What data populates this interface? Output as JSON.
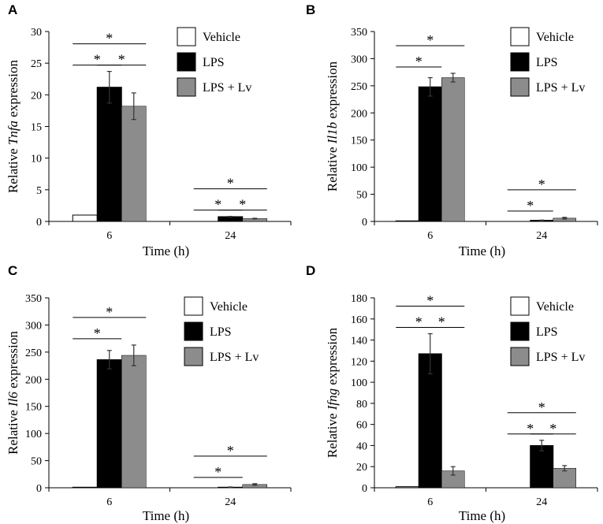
{
  "chart_data": [
    {
      "panel": "A",
      "type": "bar",
      "categories": [
        "6",
        "24"
      ],
      "xlabel": "Time (h)",
      "ylabel_pre": "Relative ",
      "ylabel_gene": "Tnfa",
      "ylabel_post": "  expression",
      "ylim": [
        0,
        30
      ],
      "yticks": [
        0,
        5,
        10,
        15,
        20,
        25,
        30
      ],
      "series": [
        {
          "name": "Vehicle",
          "values": [
            1.0,
            0.0
          ],
          "errors": [
            0,
            0
          ]
        },
        {
          "name": "LPS",
          "values": [
            21.2,
            0.75
          ],
          "errors": [
            2.5,
            0.05
          ]
        },
        {
          "name": "LPS + Lv",
          "values": [
            18.2,
            0.45
          ],
          "errors": [
            2.1,
            0.05
          ]
        }
      ],
      "significance": [
        {
          "group": 0,
          "from": 0,
          "to": 1,
          "level": 1,
          "label": "*"
        },
        {
          "group": 0,
          "from": 1,
          "to": 2,
          "level": 1,
          "label": "*"
        },
        {
          "group": 0,
          "from": 0,
          "to": 2,
          "level": 2,
          "label": "*"
        },
        {
          "group": 1,
          "from": 0,
          "to": 1,
          "level": 1,
          "label": "*"
        },
        {
          "group": 1,
          "from": 1,
          "to": 2,
          "level": 1,
          "label": "*"
        },
        {
          "group": 1,
          "from": 0,
          "to": 2,
          "level": 2,
          "label": "*"
        }
      ]
    },
    {
      "panel": "B",
      "type": "bar",
      "categories": [
        "6",
        "24"
      ],
      "xlabel": "Time (h)",
      "ylabel_pre": "Relative ",
      "ylabel_gene": "Il1b",
      "ylabel_post": " expression",
      "ylim": [
        0,
        350
      ],
      "yticks": [
        0,
        50,
        100,
        150,
        200,
        250,
        300,
        350
      ],
      "series": [
        {
          "name": "Vehicle",
          "values": [
            1.0,
            0.0
          ],
          "errors": [
            0,
            0
          ]
        },
        {
          "name": "LPS",
          "values": [
            248,
            2.0
          ],
          "errors": [
            17,
            0.5
          ]
        },
        {
          "name": "LPS + Lv",
          "values": [
            265,
            6.0
          ],
          "errors": [
            8,
            1.5
          ]
        }
      ],
      "significance": [
        {
          "group": 0,
          "from": 0,
          "to": 1,
          "level": 1,
          "label": "*"
        },
        {
          "group": 0,
          "from": 0,
          "to": 2,
          "level": 2,
          "label": "*"
        },
        {
          "group": 1,
          "from": 0,
          "to": 1,
          "level": 1,
          "label": "*"
        },
        {
          "group": 1,
          "from": 0,
          "to": 2,
          "level": 2,
          "label": "*"
        }
      ]
    },
    {
      "panel": "C",
      "type": "bar",
      "categories": [
        "6",
        "24"
      ],
      "xlabel": "Time (h)",
      "ylabel_pre": "Relative ",
      "ylabel_gene": "Il6",
      "ylabel_post": "  expression",
      "ylim": [
        0,
        350
      ],
      "yticks": [
        0,
        50,
        100,
        150,
        200,
        250,
        300,
        350
      ],
      "series": [
        {
          "name": "Vehicle",
          "values": [
            1.0,
            0.0
          ],
          "errors": [
            0,
            0
          ]
        },
        {
          "name": "LPS",
          "values": [
            236,
            1.0
          ],
          "errors": [
            17,
            0.5
          ]
        },
        {
          "name": "LPS + Lv",
          "values": [
            244,
            6.0
          ],
          "errors": [
            19,
            1.5
          ]
        }
      ],
      "significance": [
        {
          "group": 0,
          "from": 0,
          "to": 1,
          "level": 1,
          "label": "*"
        },
        {
          "group": 0,
          "from": 0,
          "to": 2,
          "level": 2,
          "label": "*"
        },
        {
          "group": 1,
          "from": 0,
          "to": 1,
          "level": 1,
          "label": "*"
        },
        {
          "group": 1,
          "from": 0,
          "to": 2,
          "level": 2,
          "label": "*"
        }
      ]
    },
    {
      "panel": "D",
      "type": "bar",
      "categories": [
        "6",
        "24"
      ],
      "xlabel": "Time (h)",
      "ylabel_pre": "Relative ",
      "ylabel_gene": "Ifng",
      "ylabel_post": " expression",
      "ylim": [
        0,
        180
      ],
      "yticks": [
        0,
        20,
        40,
        60,
        80,
        100,
        120,
        140,
        160,
        180
      ],
      "series": [
        {
          "name": "Vehicle",
          "values": [
            1.0,
            0.0
          ],
          "errors": [
            0,
            0
          ]
        },
        {
          "name": "LPS",
          "values": [
            127,
            40
          ],
          "errors": [
            19,
            5
          ]
        },
        {
          "name": "LPS + Lv",
          "values": [
            16,
            18.5
          ],
          "errors": [
            4,
            2.5
          ]
        }
      ],
      "significance": [
        {
          "group": 0,
          "from": 0,
          "to": 1,
          "level": 1,
          "label": "*"
        },
        {
          "group": 0,
          "from": 1,
          "to": 2,
          "level": 1,
          "label": "*"
        },
        {
          "group": 0,
          "from": 0,
          "to": 2,
          "level": 2,
          "label": "*"
        },
        {
          "group": 1,
          "from": 0,
          "to": 1,
          "level": 1,
          "label": "*"
        },
        {
          "group": 1,
          "from": 1,
          "to": 2,
          "level": 1,
          "label": "*"
        },
        {
          "group": 1,
          "from": 0,
          "to": 2,
          "level": 2,
          "label": "*"
        }
      ]
    }
  ],
  "colors": {
    "vehicle_fill": "#ffffff",
    "lps_fill": "#000000",
    "lpslv_fill": "#8c8c8c",
    "axis": "#000000"
  }
}
